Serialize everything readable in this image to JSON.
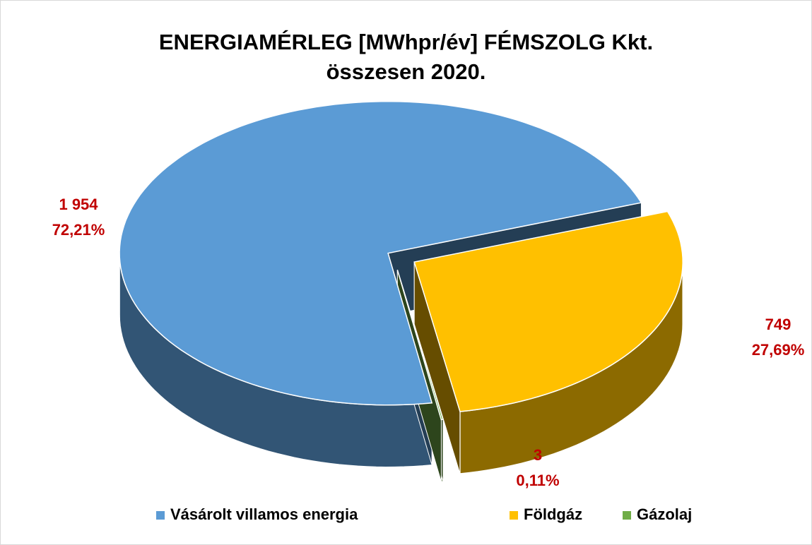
{
  "chart_data": {
    "type": "pie3d",
    "title": "ENERGIAMÉRLEG [MWhpr/év] FÉMSZOLG Kkt. összesen 2020.",
    "categories": [
      "Vásárolt villamos energia",
      "Földgáz",
      "Gázolaj"
    ],
    "values": [
      1954,
      749,
      3
    ],
    "value_labels": [
      "1 954",
      "749",
      "3"
    ],
    "percentages": [
      72.21,
      27.69,
      0.11
    ],
    "percentage_labels": [
      "72,21%",
      "27,69%",
      "0,11%"
    ],
    "colors": [
      "#5b9bd5",
      "#ffc000",
      "#70ad47"
    ],
    "legend": "bottom"
  }
}
